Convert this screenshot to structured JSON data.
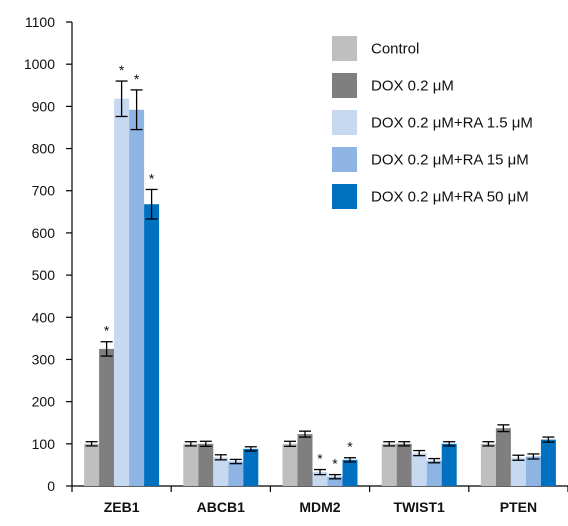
{
  "chart_data": {
    "type": "bar",
    "categories": [
      "ZEB1",
      "ABCB1",
      "MDM2",
      "TWIST1",
      "PTEN"
    ],
    "ylim": [
      0,
      1100
    ],
    "yticks": [
      0,
      100,
      200,
      300,
      400,
      500,
      600,
      700,
      800,
      900,
      1000,
      1100
    ],
    "grid": false,
    "legend_position": "top-right",
    "series": [
      {
        "name": "Control",
        "color": "#bfbfbf",
        "values": [
          100,
          100,
          100,
          100,
          100
        ],
        "errors": [
          5,
          5,
          6,
          5,
          5
        ],
        "significant": [
          false,
          false,
          false,
          false,
          false
        ]
      },
      {
        "name": "DOX 0.2 μM",
        "color": "#7f7f7f",
        "values": [
          325,
          100,
          123,
          100,
          137
        ],
        "errors": [
          17,
          6,
          7,
          5,
          8
        ],
        "significant": [
          true,
          false,
          false,
          false,
          false
        ]
      },
      {
        "name": "DOX 0.2 μM+RA 1.5 μM",
        "color": "#c6d9f1",
        "values": [
          918,
          68,
          33,
          78,
          67
        ],
        "errors": [
          42,
          6,
          6,
          6,
          6
        ],
        "significant": [
          true,
          false,
          true,
          false,
          false
        ]
      },
      {
        "name": "DOX 0.2 μM+RA 15 μM",
        "color": "#8eb4e3",
        "values": [
          892,
          58,
          22,
          60,
          70
        ],
        "errors": [
          47,
          5,
          5,
          5,
          6
        ],
        "significant": [
          true,
          false,
          true,
          false,
          false
        ]
      },
      {
        "name": "DOX 0.2 μM+RA 50 μM",
        "color": "#0070c0",
        "values": [
          668,
          88,
          62,
          100,
          110
        ],
        "errors": [
          35,
          5,
          5,
          5,
          6
        ],
        "significant": [
          true,
          false,
          true,
          false,
          false
        ]
      }
    ],
    "significance_marker": "*"
  }
}
